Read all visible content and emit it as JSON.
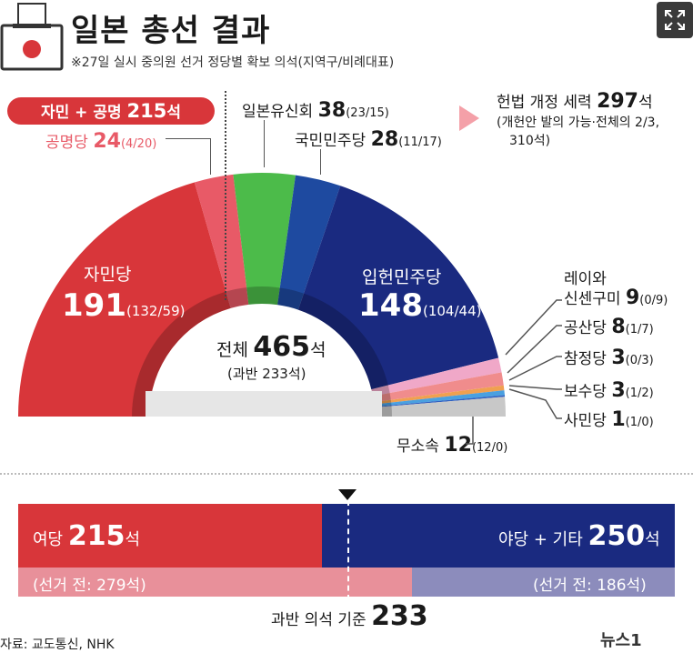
{
  "header": {
    "title": "일본 총선 결과",
    "subtitle": "※27일 실시 중의원 선거 정당별 확보 의석(지역구/비례대표)"
  },
  "coalition": {
    "label_prefix": "자민 + 공명",
    "seats": "215",
    "unit": "석"
  },
  "parties": {
    "ldp": {
      "name": "자민당",
      "seats": "191",
      "detail": "(132/59)",
      "color": "#d8363a"
    },
    "komeito": {
      "name": "공명당",
      "seats": "24",
      "detail": "(4/20)",
      "color": "#e85a67"
    },
    "ishin": {
      "name": "일본유신회",
      "seats": "38",
      "detail": "(23/15)",
      "color": "#4cbb4a"
    },
    "dpfp": {
      "name": "국민민주당",
      "seats": "28",
      "detail": "(11/17)",
      "color": "#1e4aa0"
    },
    "cdp": {
      "name": "입헌민주당",
      "seats": "148",
      "detail": "(104/44)",
      "color": "#1a2a80"
    },
    "reiwa": {
      "name_line1": "레이와",
      "name_line2": "신센구미",
      "seats": "9",
      "detail": "(0/9)",
      "color": "#f0a8c8"
    },
    "jcp": {
      "name": "공산당",
      "seats": "8",
      "detail": "(1/7)",
      "color": "#f08c8c"
    },
    "sanseito": {
      "name": "참정당",
      "seats": "3",
      "detail": "(0/3)",
      "color": "#f0a050"
    },
    "conservative": {
      "name": "보수당",
      "seats": "3",
      "detail": "(1/2)",
      "color": "#4aa0e0"
    },
    "sdp": {
      "name": "사민당",
      "seats": "1",
      "detail": "(1/0)",
      "color": "#3060c0"
    },
    "independent": {
      "name": "무소속",
      "seats": "12",
      "detail": "(12/0)",
      "color": "#c8c8c8"
    }
  },
  "total": {
    "label": "전체",
    "seats": "465",
    "unit": "석",
    "majority_note": "(과반 233석)"
  },
  "callout": {
    "line1_prefix": "헌법 개정 세력",
    "line1_seats": "297",
    "line1_unit": "석",
    "line2": "(개헌안 발의 가능·전체의 2/3,",
    "line3": "310석)"
  },
  "bar": {
    "ruling_label": "여당",
    "ruling_seats": "215",
    "ruling_unit": "석",
    "opposition_label": "야당 + 기타",
    "opposition_seats": "250",
    "opposition_unit": "석",
    "ruling_before": "(선거 전: 279석)",
    "opposition_before": "(선거 전: 186석)",
    "majority_prefix": "과반 의석 기준",
    "majority_value": "233",
    "ruling_fraction": 0.4624,
    "ruling_before_fraction": 0.6
  },
  "source": "자료: 교도통신, NHK",
  "logo": "뉴스1",
  "colors": {
    "ruling": "#d8363a",
    "opposition": "#1a2a80",
    "ruling_light": "#e8909a",
    "opposition_light": "#8c8cbc"
  }
}
